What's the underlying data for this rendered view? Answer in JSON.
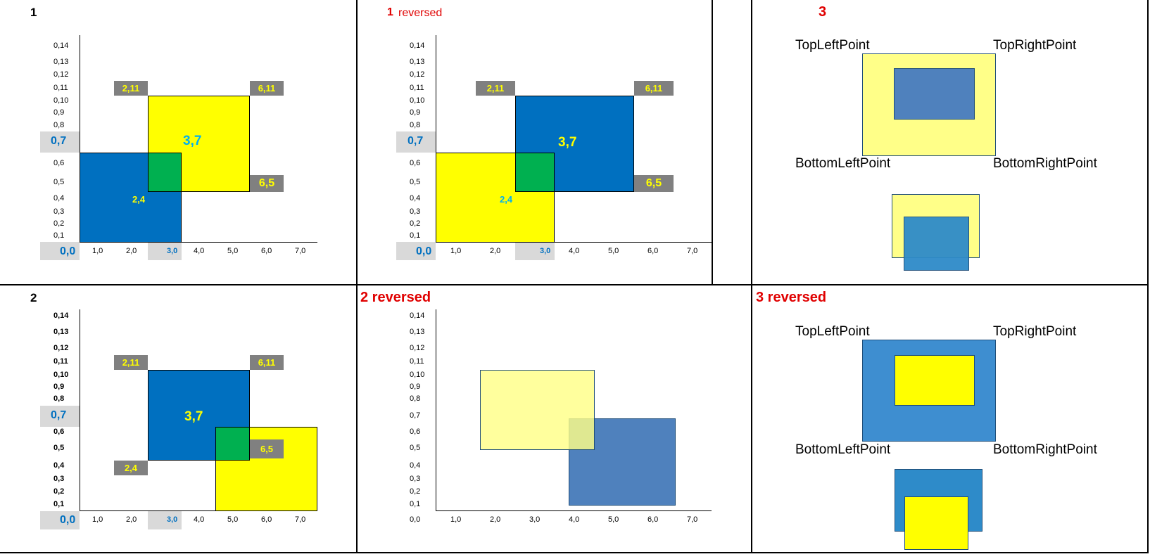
{
  "panels": {
    "p1": {
      "title": "1"
    },
    "p1r": {
      "title_num": "1",
      "title_text": "reversed"
    },
    "p3": {
      "title": "3"
    },
    "p2": {
      "title": "2"
    },
    "p2r": {
      "title": "2 reversed"
    },
    "p3r": {
      "title": "3 reversed"
    }
  },
  "ticks": {
    "y": [
      "0,14",
      "0,13",
      "0,12",
      "0,11",
      "0,10",
      "0,9",
      "0,8",
      "0,7",
      "0,6",
      "0,5",
      "0,4",
      "0,3",
      "0,2",
      "0,1"
    ],
    "y_origin": "0,0",
    "x": [
      "1,0",
      "2,0",
      "3,0",
      "4,0",
      "5,0",
      "6,0",
      "7,0"
    ]
  },
  "labels": {
    "c2_11": "2,11",
    "c6_11": "6,11",
    "c6_5": "6,5",
    "c3_7": "3,7",
    "c2_4": "2,4",
    "c0_7": "0,7",
    "c0_0": "0,0",
    "c3_0": "3,0"
  },
  "points": {
    "top_left": "TopLeftPoint",
    "top_right": "TopRightPoint",
    "bottom_left": "BottomLeftPoint",
    "bottom_right": "BottomRightPoint"
  },
  "colors": {
    "blue": "#0070c0",
    "yellow": "#ffff00",
    "green": "#00b050",
    "gray": "#808080",
    "light_gray": "#d9d9d9",
    "pale_yellow": "#ffff88",
    "steel_blue": "#4f81bd",
    "mid_blue": "#3e8ed0",
    "red": "#e00000"
  }
}
